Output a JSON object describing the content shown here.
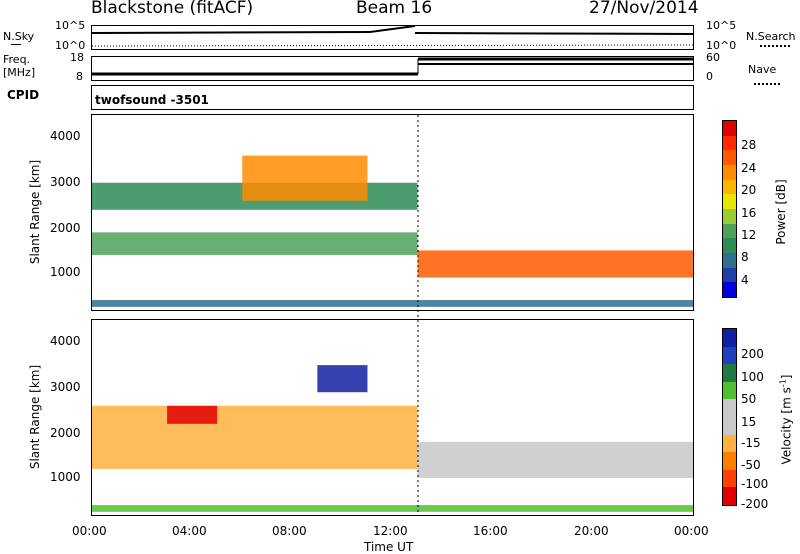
{
  "header": {
    "station": "Blackstone (fitACF)",
    "beam": "Beam 16",
    "date": "27/Nov/2014"
  },
  "noise_panel": {
    "left_label": "N.Sky",
    "right_label": "N.Search",
    "left_ticks": [
      "10^5",
      "10^0"
    ],
    "right_ticks": [
      "10^5",
      "10^0"
    ]
  },
  "freq_panel": {
    "left_label_1": "Freq.",
    "left_label_2": "[MHz]",
    "right_label": "Nave",
    "left_ticks": [
      "18",
      "8"
    ],
    "right_ticks": [
      "60",
      "0"
    ]
  },
  "cpid_panel": {
    "label": "CPID",
    "text": "twofsound  -3501"
  },
  "power_panel": {
    "ylabel": "Slant Range [km]",
    "yticks": [
      "4000",
      "3000",
      "2000",
      "1000"
    ],
    "colorbar_label": "Power [dB]",
    "colorbar_ticks": [
      "28",
      "24",
      "20",
      "16",
      "12",
      "8",
      "4"
    ],
    "colorbar_colors": [
      "#e00000",
      "#ff2a00",
      "#ff5a00",
      "#ff8c00",
      "#ffb400",
      "#e6e600",
      "#9acd32",
      "#4fa05a",
      "#2e8b57",
      "#2e6e8e",
      "#1e3fa8",
      "#0000e0"
    ]
  },
  "velocity_panel": {
    "ylabel": "Slant Range [km]",
    "yticks": [
      "4000",
      "3000",
      "2000",
      "1000"
    ],
    "colorbar_label": "Velocity [m s",
    "colorbar_label_sup": "-1",
    "colorbar_label_end": "]",
    "colorbar_ticks": [
      "200",
      "100",
      "50",
      "15",
      "-15",
      "-50",
      "-100",
      "-200"
    ],
    "colorbar_colors": [
      "#1020a0",
      "#2040c0",
      "#207a40",
      "#50c030",
      "#c8c8c8",
      "#c8c8c8",
      "#ffb040",
      "#ff8000",
      "#ff4000",
      "#e00000"
    ]
  },
  "xaxis": {
    "label": "Time UT",
    "ticks": [
      "00:00",
      "04:00",
      "08:00",
      "12:00",
      "16:00",
      "20:00",
      "00:00"
    ]
  },
  "chart_data": {
    "type": "heatmap",
    "title": "Blackstone (fitACF)  Beam 16  27/Nov/2014",
    "xlabel": "Time UT",
    "ylabel": "Slant Range [km]",
    "xlim": [
      "00:00",
      "24:00"
    ],
    "ylim": [
      180,
      4500
    ],
    "panels": [
      {
        "name": "Power [dB]",
        "clim": [
          0,
          30
        ],
        "bands": [
          {
            "t_start": 0,
            "t_end": 13,
            "range_start": 1400,
            "range_end": 1900,
            "value": 12
          },
          {
            "t_start": 0,
            "t_end": 13,
            "range_start": 2400,
            "range_end": 3000,
            "value": 8
          },
          {
            "t_start": 6,
            "t_end": 11,
            "range_start": 2600,
            "range_end": 3600,
            "value": 20
          },
          {
            "t_start": 13,
            "t_end": 24,
            "range_start": 900,
            "range_end": 1500,
            "value": 24
          },
          {
            "t_start": 0,
            "t_end": 24,
            "range_start": 250,
            "range_end": 400,
            "value": 6
          }
        ]
      },
      {
        "name": "Velocity [m s-1]",
        "clim": [
          -200,
          200
        ],
        "bands": [
          {
            "t_start": 0,
            "t_end": 13,
            "range_start": 1200,
            "range_end": 2600,
            "value": -60
          },
          {
            "t_start": 3,
            "t_end": 5,
            "range_start": 2200,
            "range_end": 2600,
            "value": -200
          },
          {
            "t_start": 9,
            "t_end": 11,
            "range_start": 2900,
            "range_end": 3500,
            "value": 200
          },
          {
            "t_start": 13,
            "t_end": 24,
            "range_start": 1000,
            "range_end": 1800,
            "value": 0
          },
          {
            "t_start": 0,
            "t_end": 24,
            "range_start": 250,
            "range_end": 400,
            "value": 40
          }
        ]
      }
    ]
  }
}
